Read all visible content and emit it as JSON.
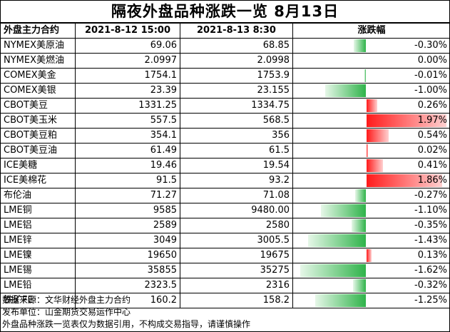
{
  "title": "隔夜外盘品种涨跌一览  8月13日",
  "headers": {
    "name": "外盘主力合约",
    "prev": "2021-8-12  15:00",
    "cur": "2021-8-13  8:30",
    "chg": "涨跌幅"
  },
  "colors": {
    "up": "#ff1a1a",
    "down": "#2fb34a"
  },
  "rows": [
    {
      "name": "NYMEX美原油",
      "prev": "69.06",
      "cur": "68.85",
      "chg": "-0.30%",
      "pct": -0.3
    },
    {
      "name": "NYMEX美燃油",
      "prev": "2.0997",
      "cur": "2.0998",
      "chg": "0.00%",
      "pct": 0.0
    },
    {
      "name": "COMEX美金",
      "prev": "1754.1",
      "cur": "1753.9",
      "chg": "-0.01%",
      "pct": -0.01
    },
    {
      "name": "COMEX美银",
      "prev": "23.39",
      "cur": "23.155",
      "chg": "-1.00%",
      "pct": -1.0
    },
    {
      "name": "CBOT美豆",
      "prev": "1331.25",
      "cur": "1334.75",
      "chg": "0.26%",
      "pct": 0.26
    },
    {
      "name": "CBOT美玉米",
      "prev": "557.5",
      "cur": "568.5",
      "chg": "1.97%",
      "pct": 1.97
    },
    {
      "name": "CBOT美豆粕",
      "prev": "354.1",
      "cur": "356",
      "chg": "0.54%",
      "pct": 0.54
    },
    {
      "name": "CBOT美豆油",
      "prev": "61.49",
      "cur": "61.5",
      "chg": "0.02%",
      "pct": 0.02
    },
    {
      "name": "ICE美糖",
      "prev": "19.46",
      "cur": "19.54",
      "chg": "0.41%",
      "pct": 0.41
    },
    {
      "name": "ICE美棉花",
      "prev": "91.5",
      "cur": "93.2",
      "chg": "1.86%",
      "pct": 1.86
    },
    {
      "name": "布伦油",
      "prev": "71.27",
      "cur": "71.08",
      "chg": "-0.27%",
      "pct": -0.27
    },
    {
      "name": "LME铜",
      "prev": "9585",
      "cur": "9480.00",
      "chg": "-1.10%",
      "pct": -1.1
    },
    {
      "name": "LME铝",
      "prev": "2589",
      "cur": "2580",
      "chg": "-0.35%",
      "pct": -0.35
    },
    {
      "name": "LME锌",
      "prev": "3049",
      "cur": "3005.5",
      "chg": "-1.43%",
      "pct": -1.43
    },
    {
      "name": "LME镍",
      "prev": "19650",
      "cur": "19675",
      "chg": "0.13%",
      "pct": 0.13
    },
    {
      "name": "LME锡",
      "prev": "35855",
      "cur": "35275",
      "chg": "-1.62%",
      "pct": -1.62
    },
    {
      "name": "LME铅",
      "prev": "2323.5",
      "cur": "2316",
      "chg": "-0.32%",
      "pct": -0.32
    },
    {
      "name": "铁矿FE",
      "prev": "160.2",
      "cur": "158.2",
      "chg": "-1.25%",
      "pct": -1.25
    }
  ],
  "notes": [
    "数据来源：文华财经外盘主力合约",
    "发布单位：山金期货交易运作中心",
    "外盘品种涨跌一览表仅为数据引用，不构成交易指导，请谨慎操作"
  ]
}
